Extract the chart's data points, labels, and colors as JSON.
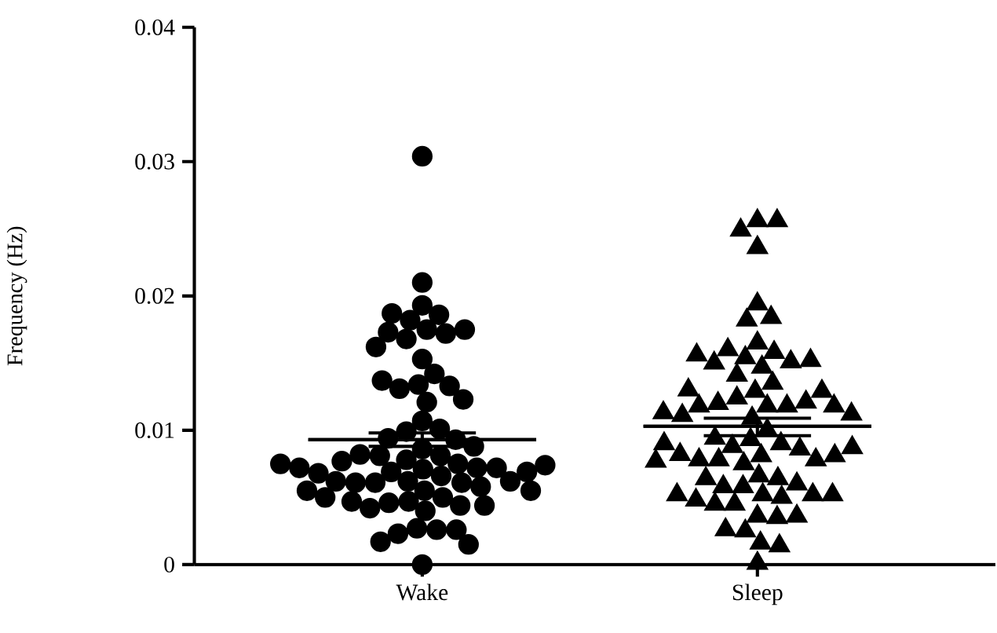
{
  "chart_data": {
    "type": "scatter",
    "ylabel": "Frequency (Hz)",
    "categories": [
      "Wake",
      "Sleep"
    ],
    "ylim": [
      0,
      0.04
    ],
    "yticks": [
      0,
      0.01,
      0.02,
      0.03,
      0.04
    ],
    "series": [
      {
        "type": "scatter",
        "marker": "circle",
        "color": "#000000",
        "x": [
          "Wake",
          "Wake",
          "Wake",
          "Wake",
          "Wake",
          "Wake",
          "Wake",
          "Wake",
          "Wake",
          "Wake",
          "Wake",
          "Wake",
          "Wake",
          "Wake",
          "Wake",
          "Wake",
          "Wake",
          "Wake",
          "Wake",
          "Wake",
          "Wake",
          "Wake",
          "Wake",
          "Wake",
          "Wake",
          "Wake",
          "Wake",
          "Wake",
          "Wake",
          "Wake",
          "Wake",
          "Wake",
          "Wake",
          "Wake",
          "Wake",
          "Wake",
          "Wake",
          "Wake",
          "Wake",
          "Wake",
          "Wake",
          "Wake",
          "Wake",
          "Wake",
          "Wake",
          "Wake",
          "Wake",
          "Wake",
          "Wake",
          "Wake",
          "Wake",
          "Wake",
          "Wake",
          "Wake",
          "Wake",
          "Wake",
          "Wake",
          "Wake",
          "Wake",
          "Wake",
          "Wake",
          "Wake",
          "Wake",
          "Wake",
          "Wake",
          "Wake",
          "Wake",
          "Wake",
          "Wake"
        ],
        "values": [
          0.0304,
          0.021,
          0.0193,
          0.0186,
          0.0182,
          0.0187,
          0.0175,
          0.0172,
          0.0173,
          0.0175,
          0.0168,
          0.0162,
          0.0153,
          0.0142,
          0.0134,
          0.0131,
          0.0133,
          0.0137,
          0.0121,
          0.0123,
          0.0107,
          0.0101,
          0.0099,
          0.0093,
          0.0094,
          0.0086,
          0.0088,
          0.0081,
          0.0078,
          0.0081,
          0.0082,
          0.0075,
          0.0072,
          0.0072,
          0.0071,
          0.0069,
          0.0066,
          0.0062,
          0.0061,
          0.0061,
          0.0061,
          0.0062,
          0.0062,
          0.0068,
          0.0069,
          0.0072,
          0.0074,
          0.0075,
          0.0077,
          0.0058,
          0.0055,
          0.005,
          0.0047,
          0.0046,
          0.0044,
          0.004,
          0.0042,
          0.0044,
          0.0047,
          0.005,
          0.0055,
          0.0055,
          0.0027,
          0.0026,
          0.0023,
          0.0026,
          0.0017,
          0.0015,
          0.0
        ]
      },
      {
        "type": "scatter",
        "marker": "triangle",
        "color": "#000000",
        "x": [
          "Sleep",
          "Sleep",
          "Sleep",
          "Sleep",
          "Sleep",
          "Sleep",
          "Sleep",
          "Sleep",
          "Sleep",
          "Sleep",
          "Sleep",
          "Sleep",
          "Sleep",
          "Sleep",
          "Sleep",
          "Sleep",
          "Sleep",
          "Sleep",
          "Sleep",
          "Sleep",
          "Sleep",
          "Sleep",
          "Sleep",
          "Sleep",
          "Sleep",
          "Sleep",
          "Sleep",
          "Sleep",
          "Sleep",
          "Sleep",
          "Sleep",
          "Sleep",
          "Sleep",
          "Sleep",
          "Sleep",
          "Sleep",
          "Sleep",
          "Sleep",
          "Sleep",
          "Sleep",
          "Sleep",
          "Sleep",
          "Sleep",
          "Sleep",
          "Sleep",
          "Sleep",
          "Sleep",
          "Sleep",
          "Sleep",
          "Sleep",
          "Sleep",
          "Sleep",
          "Sleep",
          "Sleep",
          "Sleep",
          "Sleep",
          "Sleep",
          "Sleep",
          "Sleep",
          "Sleep",
          "Sleep",
          "Sleep",
          "Sleep",
          "Sleep",
          "Sleep",
          "Sleep",
          "Sleep",
          "Sleep",
          "Sleep",
          "Sleep"
        ],
        "values": [
          0.0256,
          0.0256,
          0.0249,
          0.0236,
          0.0194,
          0.0184,
          0.0182,
          0.0165,
          0.0158,
          0.0154,
          0.016,
          0.0151,
          0.0147,
          0.015,
          0.0152,
          0.0156,
          0.0141,
          0.0135,
          0.0129,
          0.0124,
          0.0118,
          0.0118,
          0.012,
          0.0121,
          0.0118,
          0.0129,
          0.013,
          0.0118,
          0.0109,
          0.0111,
          0.0112,
          0.0113,
          0.01,
          0.0093,
          0.009,
          0.0088,
          0.0086,
          0.0081,
          0.0078,
          0.0078,
          0.0078,
          0.0081,
          0.0082,
          0.0087,
          0.009,
          0.0094,
          0.0077,
          0.0075,
          0.0066,
          0.0064,
          0.0058,
          0.0058,
          0.006,
          0.0064,
          0.0052,
          0.0052,
          0.005,
          0.0045,
          0.0045,
          0.0048,
          0.0052,
          0.0052,
          0.0036,
          0.0035,
          0.0036,
          0.0025,
          0.0026,
          0.0016,
          0.0014,
          0.0001
        ]
      },
      {
        "type": "box",
        "color": "#000000",
        "boxes": [
          {
            "low": 0.0088,
            "q1": 0.0093,
            "median": 0.0093,
            "q3": 0.0093,
            "high": 0.0098
          },
          {
            "low": 0.0096,
            "q1": 0.0103,
            "median": 0.0103,
            "q3": 0.0103,
            "high": 0.0109
          }
        ]
      }
    ]
  }
}
